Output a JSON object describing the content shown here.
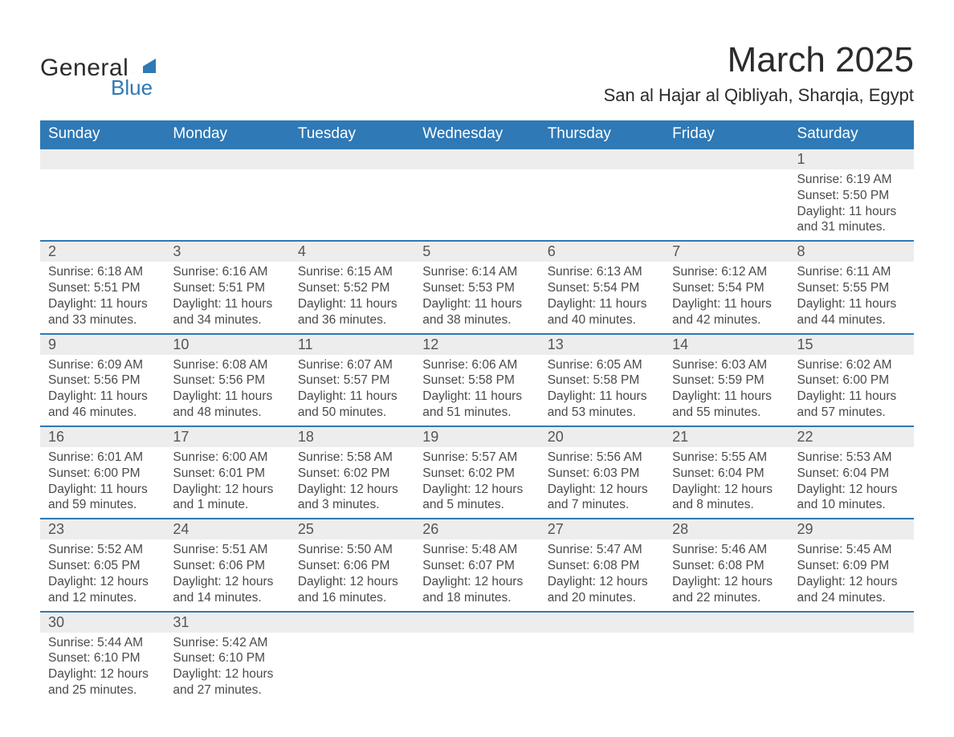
{
  "logo": {
    "text_general": "General",
    "text_blue": "Blue",
    "shape_color": "#2e79b6"
  },
  "title": "March 2025",
  "location": "San al Hajar al Qibliyah, Sharqia, Egypt",
  "colors": {
    "header_bg": "#2e79b6",
    "header_text": "#ffffff",
    "daynum_bg": "#ededed",
    "row_border": "#2e79b6",
    "text": "#4a4a4a",
    "title_text": "#2b2b2b",
    "page_bg": "#ffffff"
  },
  "fonts": {
    "title_size_pt": 33,
    "location_size_pt": 17,
    "header_size_pt": 14,
    "daynum_size_pt": 14,
    "detail_size_pt": 12,
    "logo_general_size_pt": 23,
    "logo_blue_size_pt": 20
  },
  "weekdays": [
    "Sunday",
    "Monday",
    "Tuesday",
    "Wednesday",
    "Thursday",
    "Friday",
    "Saturday"
  ],
  "weeks": [
    [
      null,
      null,
      null,
      null,
      null,
      null,
      {
        "day": "1",
        "sunrise": "Sunrise: 6:19 AM",
        "sunset": "Sunset: 5:50 PM",
        "d1": "Daylight: 11 hours",
        "d2": "and 31 minutes."
      }
    ],
    [
      {
        "day": "2",
        "sunrise": "Sunrise: 6:18 AM",
        "sunset": "Sunset: 5:51 PM",
        "d1": "Daylight: 11 hours",
        "d2": "and 33 minutes."
      },
      {
        "day": "3",
        "sunrise": "Sunrise: 6:16 AM",
        "sunset": "Sunset: 5:51 PM",
        "d1": "Daylight: 11 hours",
        "d2": "and 34 minutes."
      },
      {
        "day": "4",
        "sunrise": "Sunrise: 6:15 AM",
        "sunset": "Sunset: 5:52 PM",
        "d1": "Daylight: 11 hours",
        "d2": "and 36 minutes."
      },
      {
        "day": "5",
        "sunrise": "Sunrise: 6:14 AM",
        "sunset": "Sunset: 5:53 PM",
        "d1": "Daylight: 11 hours",
        "d2": "and 38 minutes."
      },
      {
        "day": "6",
        "sunrise": "Sunrise: 6:13 AM",
        "sunset": "Sunset: 5:54 PM",
        "d1": "Daylight: 11 hours",
        "d2": "and 40 minutes."
      },
      {
        "day": "7",
        "sunrise": "Sunrise: 6:12 AM",
        "sunset": "Sunset: 5:54 PM",
        "d1": "Daylight: 11 hours",
        "d2": "and 42 minutes."
      },
      {
        "day": "8",
        "sunrise": "Sunrise: 6:11 AM",
        "sunset": "Sunset: 5:55 PM",
        "d1": "Daylight: 11 hours",
        "d2": "and 44 minutes."
      }
    ],
    [
      {
        "day": "9",
        "sunrise": "Sunrise: 6:09 AM",
        "sunset": "Sunset: 5:56 PM",
        "d1": "Daylight: 11 hours",
        "d2": "and 46 minutes."
      },
      {
        "day": "10",
        "sunrise": "Sunrise: 6:08 AM",
        "sunset": "Sunset: 5:56 PM",
        "d1": "Daylight: 11 hours",
        "d2": "and 48 minutes."
      },
      {
        "day": "11",
        "sunrise": "Sunrise: 6:07 AM",
        "sunset": "Sunset: 5:57 PM",
        "d1": "Daylight: 11 hours",
        "d2": "and 50 minutes."
      },
      {
        "day": "12",
        "sunrise": "Sunrise: 6:06 AM",
        "sunset": "Sunset: 5:58 PM",
        "d1": "Daylight: 11 hours",
        "d2": "and 51 minutes."
      },
      {
        "day": "13",
        "sunrise": "Sunrise: 6:05 AM",
        "sunset": "Sunset: 5:58 PM",
        "d1": "Daylight: 11 hours",
        "d2": "and 53 minutes."
      },
      {
        "day": "14",
        "sunrise": "Sunrise: 6:03 AM",
        "sunset": "Sunset: 5:59 PM",
        "d1": "Daylight: 11 hours",
        "d2": "and 55 minutes."
      },
      {
        "day": "15",
        "sunrise": "Sunrise: 6:02 AM",
        "sunset": "Sunset: 6:00 PM",
        "d1": "Daylight: 11 hours",
        "d2": "and 57 minutes."
      }
    ],
    [
      {
        "day": "16",
        "sunrise": "Sunrise: 6:01 AM",
        "sunset": "Sunset: 6:00 PM",
        "d1": "Daylight: 11 hours",
        "d2": "and 59 minutes."
      },
      {
        "day": "17",
        "sunrise": "Sunrise: 6:00 AM",
        "sunset": "Sunset: 6:01 PM",
        "d1": "Daylight: 12 hours",
        "d2": "and 1 minute."
      },
      {
        "day": "18",
        "sunrise": "Sunrise: 5:58 AM",
        "sunset": "Sunset: 6:02 PM",
        "d1": "Daylight: 12 hours",
        "d2": "and 3 minutes."
      },
      {
        "day": "19",
        "sunrise": "Sunrise: 5:57 AM",
        "sunset": "Sunset: 6:02 PM",
        "d1": "Daylight: 12 hours",
        "d2": "and 5 minutes."
      },
      {
        "day": "20",
        "sunrise": "Sunrise: 5:56 AM",
        "sunset": "Sunset: 6:03 PM",
        "d1": "Daylight: 12 hours",
        "d2": "and 7 minutes."
      },
      {
        "day": "21",
        "sunrise": "Sunrise: 5:55 AM",
        "sunset": "Sunset: 6:04 PM",
        "d1": "Daylight: 12 hours",
        "d2": "and 8 minutes."
      },
      {
        "day": "22",
        "sunrise": "Sunrise: 5:53 AM",
        "sunset": "Sunset: 6:04 PM",
        "d1": "Daylight: 12 hours",
        "d2": "and 10 minutes."
      }
    ],
    [
      {
        "day": "23",
        "sunrise": "Sunrise: 5:52 AM",
        "sunset": "Sunset: 6:05 PM",
        "d1": "Daylight: 12 hours",
        "d2": "and 12 minutes."
      },
      {
        "day": "24",
        "sunrise": "Sunrise: 5:51 AM",
        "sunset": "Sunset: 6:06 PM",
        "d1": "Daylight: 12 hours",
        "d2": "and 14 minutes."
      },
      {
        "day": "25",
        "sunrise": "Sunrise: 5:50 AM",
        "sunset": "Sunset: 6:06 PM",
        "d1": "Daylight: 12 hours",
        "d2": "and 16 minutes."
      },
      {
        "day": "26",
        "sunrise": "Sunrise: 5:48 AM",
        "sunset": "Sunset: 6:07 PM",
        "d1": "Daylight: 12 hours",
        "d2": "and 18 minutes."
      },
      {
        "day": "27",
        "sunrise": "Sunrise: 5:47 AM",
        "sunset": "Sunset: 6:08 PM",
        "d1": "Daylight: 12 hours",
        "d2": "and 20 minutes."
      },
      {
        "day": "28",
        "sunrise": "Sunrise: 5:46 AM",
        "sunset": "Sunset: 6:08 PM",
        "d1": "Daylight: 12 hours",
        "d2": "and 22 minutes."
      },
      {
        "day": "29",
        "sunrise": "Sunrise: 5:45 AM",
        "sunset": "Sunset: 6:09 PM",
        "d1": "Daylight: 12 hours",
        "d2": "and 24 minutes."
      }
    ],
    [
      {
        "day": "30",
        "sunrise": "Sunrise: 5:44 AM",
        "sunset": "Sunset: 6:10 PM",
        "d1": "Daylight: 12 hours",
        "d2": "and 25 minutes."
      },
      {
        "day": "31",
        "sunrise": "Sunrise: 5:42 AM",
        "sunset": "Sunset: 6:10 PM",
        "d1": "Daylight: 12 hours",
        "d2": "and 27 minutes."
      },
      null,
      null,
      null,
      null,
      null
    ]
  ]
}
